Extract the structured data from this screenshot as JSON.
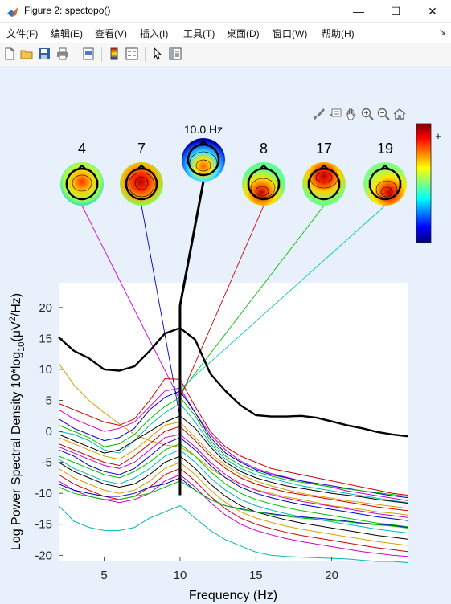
{
  "window": {
    "title": "Figure 2: spectopo()"
  },
  "menus": [
    "文件(F)",
    "编辑(E)",
    "查看(V)",
    "插入(I)",
    "工具(T)",
    "桌面(D)",
    "窗口(W)",
    "帮助(H)"
  ],
  "toolbar": {
    "icons": [
      "new-figure-icon",
      "open-file-icon",
      "save-icon",
      "print-icon",
      "print-preview-icon",
      "colorbar-icon",
      "legend-icon",
      "pointer-icon",
      "property-editor-icon"
    ]
  },
  "axes_toolbar": {
    "icons": [
      "brush-icon",
      "data-tip-icon",
      "pan-icon",
      "zoom-in-icon",
      "zoom-out-icon",
      "home-icon"
    ]
  },
  "topo": {
    "freq_label": "10.0 Hz",
    "components": [
      "4",
      "7",
      "",
      "8",
      "17",
      "19"
    ],
    "colorbar": {
      "plus": "+",
      "minus": "-"
    }
  },
  "chart_data": {
    "type": "line",
    "xlabel": "Frequency (Hz)",
    "ylabel_parts": {
      "a": "Log Power Spectral Density 10*log",
      "sub1": "10",
      "b": "(",
      "mu": "μ",
      "c": "V",
      "sup": "2",
      "d": "/Hz)"
    },
    "xlim": [
      2,
      25
    ],
    "ylim": [
      -21,
      24
    ],
    "xticks": [
      "5",
      "10",
      "15",
      "20"
    ],
    "yticks": [
      "20",
      "15",
      "10",
      "5",
      "0",
      "-5",
      "-10",
      "-15",
      "-20"
    ],
    "highlight_x": 10,
    "x": [
      2,
      3,
      4,
      5,
      6,
      7,
      8,
      9,
      10,
      11,
      12,
      13,
      14,
      15,
      16,
      17,
      18,
      19,
      20,
      21,
      22,
      23,
      24,
      25
    ],
    "series": [
      {
        "color": "#000000",
        "width": 2.4,
        "values": [
          15.2,
          13,
          11.8,
          10,
          9.8,
          10.5,
          13,
          15.8,
          16.7,
          14.8,
          9.3,
          6.5,
          4.2,
          2.6,
          2.4,
          2.4,
          2.5,
          2.2,
          1.6,
          1,
          0.5,
          -0.1,
          -0.5,
          -0.8
        ]
      },
      {
        "color": "#d4a000",
        "width": 1,
        "values": [
          11,
          7.5,
          5,
          3,
          1.2,
          -0.5,
          -1.5,
          -2.2,
          -2.5,
          -4,
          -6,
          -7.5,
          -8.5,
          -9.4,
          -10,
          -10.6,
          -11,
          -11.5,
          -12,
          -12.3,
          -12.6,
          -13,
          -13.2,
          -13.5
        ]
      },
      {
        "color": "#cc0000",
        "width": 1,
        "values": [
          4.5,
          3.5,
          2.5,
          1.5,
          1,
          2,
          5,
          8.5,
          8.4,
          4,
          0,
          -2.5,
          -4,
          -5,
          -6,
          -6.5,
          -7,
          -7.5,
          -8,
          -8.5,
          -9,
          -9.5,
          -10,
          -10.3
        ]
      },
      {
        "color": "#d000d0",
        "width": 1,
        "values": [
          3.5,
          2,
          1,
          0,
          0.5,
          1.5,
          4,
          6.5,
          7,
          3,
          -0.5,
          -3,
          -4.8,
          -6,
          -6.8,
          -7.4,
          -8,
          -8.6,
          -9,
          -9.6,
          -10,
          -10.4,
          -10.8,
          -11.2
        ]
      },
      {
        "color": "#0000cc",
        "width": 1,
        "values": [
          2,
          0.5,
          -0.5,
          -1.5,
          -1,
          0.5,
          3.5,
          5.5,
          6.5,
          3,
          -1,
          -3.5,
          -5,
          -6.2,
          -7,
          -7.5,
          -8,
          -8.4,
          -8.8,
          -9.2,
          -9.6,
          -10,
          -10.4,
          -10.7
        ]
      },
      {
        "color": "#00c000",
        "width": 1,
        "values": [
          1,
          0,
          -1,
          -2.5,
          -2,
          -0.5,
          2,
          4,
          5.5,
          2.5,
          -1.5,
          -4,
          -5.5,
          -6.5,
          -7.2,
          -7.8,
          -8.2,
          -8.6,
          -9,
          -9.3,
          -9.6,
          -9.9,
          -10.2,
          -10.5
        ]
      },
      {
        "color": "#00b8b8",
        "width": 1,
        "values": [
          0,
          -0.5,
          -1.5,
          -3,
          -3.5,
          -1.5,
          1,
          3,
          4.5,
          1.5,
          -2,
          -4.5,
          -6,
          -7,
          -7.6,
          -8.2,
          -8.8,
          -9.2,
          -9.6,
          -10,
          -10.4,
          -10.8,
          -11.2,
          -11.5
        ]
      },
      {
        "color": "#000000",
        "width": 1,
        "values": [
          -0.5,
          -1.5,
          -2.5,
          -3.5,
          -3,
          -1.5,
          0,
          1.5,
          2.5,
          0.5,
          -2.5,
          -5,
          -6.5,
          -7.5,
          -8.2,
          -8.8,
          -9.2,
          -9.6,
          -10,
          -10.3,
          -10.6,
          -11,
          -11.3,
          -11.6
        ]
      },
      {
        "color": "#d4a000",
        "width": 1,
        "values": [
          -1,
          -2,
          -3,
          -4,
          -4.5,
          -3,
          -1,
          1,
          1.5,
          -1,
          -3.5,
          -5.5,
          -7,
          -8,
          -8.8,
          -9.4,
          -10,
          -10.4,
          -10.8,
          -11.2,
          -11.5,
          -11.8,
          -12.1,
          -12.4
        ]
      },
      {
        "color": "#cc0000",
        "width": 1,
        "values": [
          -2,
          -3,
          -4,
          -5,
          -5.5,
          -4,
          -2,
          0,
          0.8,
          -1.5,
          -4,
          -6,
          -7.5,
          -8.5,
          -9.2,
          -9.8,
          -10.2,
          -10.6,
          -11,
          -11.4,
          -11.8,
          -12.2,
          -12.5,
          -12.8
        ]
      },
      {
        "color": "#d000d0",
        "width": 1,
        "values": [
          -2.5,
          -3.5,
          -4.5,
          -5.5,
          -6,
          -5,
          -3,
          -1,
          -0.5,
          -2.5,
          -5,
          -7,
          -8.5,
          -9.5,
          -10.2,
          -10.8,
          -11.3,
          -11.7,
          -12.1,
          -12.5,
          -12.9,
          -13.3,
          -13.6,
          -13.9
        ]
      },
      {
        "color": "#0000cc",
        "width": 1,
        "values": [
          -3,
          -4,
          -5.5,
          -6.5,
          -7,
          -6,
          -4,
          -2,
          -1,
          -3,
          -5.5,
          -7.5,
          -9,
          -10,
          -10.7,
          -11.3,
          -11.8,
          -12.2,
          -12.6,
          -13,
          -13.4,
          -13.8,
          -14.1,
          -14.4
        ]
      },
      {
        "color": "#00c000",
        "width": 1,
        "values": [
          -4,
          -5,
          -6,
          -7,
          -7.5,
          -6.5,
          -5,
          -3,
          -2,
          -4,
          -6.5,
          -8.5,
          -10,
          -11,
          -11.7,
          -12.3,
          -12.8,
          -13.2,
          -13.6,
          -14,
          -14.4,
          -14.8,
          -15.1,
          -15.4
        ]
      },
      {
        "color": "#00b8b8",
        "width": 1,
        "values": [
          -4.5,
          -6,
          -7,
          -8,
          -8.5,
          -7.5,
          -6,
          -4,
          -3,
          -5,
          -7.5,
          -9.5,
          -11,
          -12,
          -12.7,
          -13.3,
          -13.8,
          -14.2,
          -14.6,
          -15,
          -15.4,
          -15.8,
          -16.1,
          -16.4
        ]
      },
      {
        "color": "#000000",
        "width": 1,
        "values": [
          -5,
          -6.5,
          -7.5,
          -8.5,
          -9,
          -8.5,
          -7,
          -5,
          -4,
          -6,
          -8.5,
          -10.5,
          -12,
          -13,
          -13.7,
          -14.3,
          -14.8,
          -15.2,
          -15.6,
          -16,
          -16.4,
          -16.8,
          -17.1,
          -17.4
        ]
      },
      {
        "color": "#d4a000",
        "width": 1,
        "values": [
          -6,
          -7.5,
          -8.5,
          -9.5,
          -10,
          -9.5,
          -8,
          -6,
          -5,
          -7,
          -9.5,
          -11.5,
          -13,
          -14,
          -14.7,
          -15.3,
          -15.8,
          -16.2,
          -16.6,
          -17,
          -17.4,
          -17.8,
          -18.1,
          -18.4
        ]
      },
      {
        "color": "#cc0000",
        "width": 1,
        "values": [
          -7,
          -8.5,
          -9.5,
          -10.5,
          -11,
          -10.5,
          -9,
          -7,
          -6,
          -8,
          -10.5,
          -12.5,
          -14,
          -15,
          -15.7,
          -16.3,
          -16.8,
          -17.2,
          -17.6,
          -18,
          -18.4,
          -18.8,
          -19.1,
          -19.4
        ]
      },
      {
        "color": "#d000d0",
        "width": 1,
        "values": [
          -8,
          -9.5,
          -10.5,
          -11,
          -11.5,
          -11,
          -10,
          -8,
          -7,
          -9,
          -11.5,
          -13.5,
          -15,
          -16,
          -16.7,
          -17.3,
          -17.8,
          -18.2,
          -18.6,
          -19,
          -19.4,
          -19.7,
          -20,
          -20.2
        ]
      },
      {
        "color": "#0000cc",
        "width": 1,
        "values": [
          -8.5,
          -9.5,
          -10,
          -10.5,
          -10.5,
          -10,
          -9,
          -8.5,
          -7.5,
          -9.5,
          -11,
          -12,
          -12.5,
          -13,
          -13.3,
          -13.6,
          -13.8,
          -14,
          -14.2,
          -14.5,
          -14.8,
          -15,
          -15.2,
          -15.5
        ]
      },
      {
        "color": "#00c000",
        "width": 1,
        "values": [
          -9,
          -10,
          -10.5,
          -11,
          -11,
          -10.5,
          -10,
          -9,
          -8,
          -9.5,
          -11,
          -12,
          -12.6,
          -13,
          -13.4,
          -13.7,
          -14,
          -14.2,
          -14.4,
          -14.6,
          -14.9,
          -15.1,
          -15.3,
          -15.6
        ]
      },
      {
        "color": "#00b8b8",
        "width": 1,
        "values": [
          -12,
          -14.5,
          -15.5,
          -16,
          -16,
          -15.5,
          -14,
          -13,
          -12,
          -14,
          -16,
          -17.5,
          -18.5,
          -19.5,
          -20,
          -20.2,
          -20.3,
          -20.4,
          -20.5,
          -20.6,
          -20.8,
          -21,
          -21,
          -21.2
        ]
      }
    ]
  }
}
